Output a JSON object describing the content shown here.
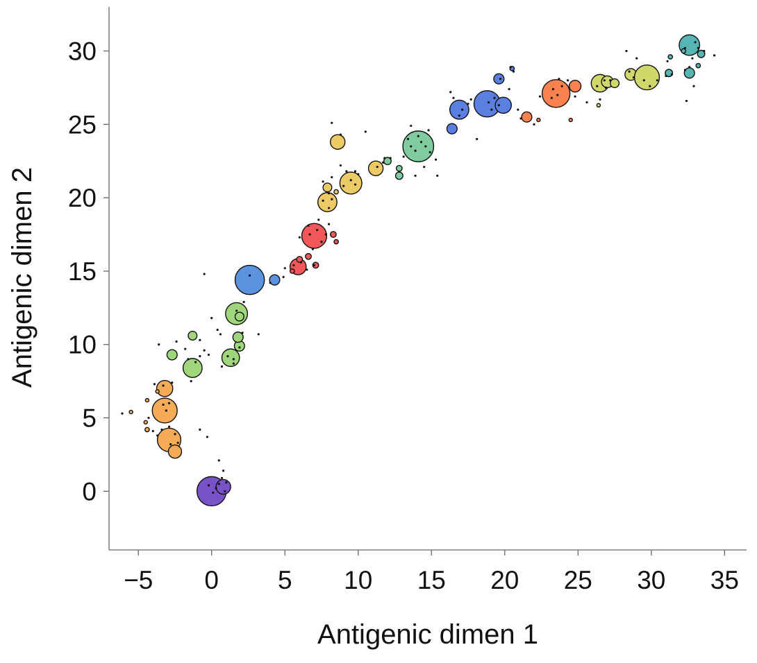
{
  "chart_data": {
    "type": "scatter",
    "title": "",
    "xlabel": "Antigenic dimen 1",
    "ylabel": "Antigenic dimen 2",
    "xlim": [
      -7,
      36.5
    ],
    "ylim": [
      -4,
      33
    ],
    "xticks": [
      -5,
      0,
      5,
      10,
      15,
      20,
      25,
      30,
      35
    ],
    "yticks": [
      0,
      5,
      10,
      15,
      20,
      25,
      30
    ],
    "xtick_labels": [
      "−5",
      "0",
      "5",
      "10",
      "15",
      "20",
      "25",
      "30",
      "35"
    ],
    "ytick_labels": [
      "0",
      "5",
      "10",
      "15",
      "20",
      "25",
      "30"
    ],
    "grid": false,
    "legend": "none",
    "clusters": [
      {
        "x": 0.0,
        "y": 0.0,
        "r": 1.0,
        "color": "#7a52c8"
      },
      {
        "x": 0.8,
        "y": 0.3,
        "r": 0.5,
        "color": "#7a52c8"
      },
      {
        "x": -2.9,
        "y": 3.5,
        "r": 0.8,
        "color": "#f6ab57"
      },
      {
        "x": -2.5,
        "y": 2.7,
        "r": 0.45,
        "color": "#f6ab57"
      },
      {
        "x": -3.2,
        "y": 5.5,
        "r": 0.85,
        "color": "#f6ab57"
      },
      {
        "x": -3.2,
        "y": 7.0,
        "r": 0.55,
        "color": "#f6ab57"
      },
      {
        "x": -1.3,
        "y": 8.4,
        "r": 0.65,
        "color": "#9fd57b"
      },
      {
        "x": -2.7,
        "y": 9.3,
        "r": 0.35,
        "color": "#9fd57b"
      },
      {
        "x": -1.3,
        "y": 10.6,
        "r": 0.3,
        "color": "#9fd57b"
      },
      {
        "x": 1.3,
        "y": 9.1,
        "r": 0.6,
        "color": "#9fd57b"
      },
      {
        "x": 1.9,
        "y": 9.9,
        "r": 0.35,
        "color": "#9fd57b"
      },
      {
        "x": 1.8,
        "y": 10.5,
        "r": 0.35,
        "color": "#9fd57b"
      },
      {
        "x": 1.7,
        "y": 12.1,
        "r": 0.75,
        "color": "#9fd57b"
      },
      {
        "x": 1.9,
        "y": 11.9,
        "r": 0.3,
        "color": "#9fd57b"
      },
      {
        "x": 2.6,
        "y": 14.4,
        "r": 1.0,
        "color": "#5b93e1"
      },
      {
        "x": 4.3,
        "y": 14.4,
        "r": 0.35,
        "color": "#5b93e1"
      },
      {
        "x": 5.9,
        "y": 15.3,
        "r": 0.55,
        "color": "#f25759"
      },
      {
        "x": 7.0,
        "y": 17.4,
        "r": 0.85,
        "color": "#f25759"
      },
      {
        "x": 8.3,
        "y": 17.5,
        "r": 0.2,
        "color": "#f25759"
      },
      {
        "x": 7.9,
        "y": 19.7,
        "r": 0.65,
        "color": "#ecca66"
      },
      {
        "x": 7.9,
        "y": 20.7,
        "r": 0.3,
        "color": "#ecca66"
      },
      {
        "x": 9.5,
        "y": 21.0,
        "r": 0.75,
        "color": "#ecca66"
      },
      {
        "x": 8.6,
        "y": 23.8,
        "r": 0.5,
        "color": "#ecca66"
      },
      {
        "x": 11.2,
        "y": 22.0,
        "r": 0.5,
        "color": "#ecca66"
      },
      {
        "x": 12.0,
        "y": 22.5,
        "r": 0.25,
        "color": "#80cc9e"
      },
      {
        "x": 14.1,
        "y": 23.5,
        "r": 1.05,
        "color": "#80cc9e"
      },
      {
        "x": 12.8,
        "y": 21.5,
        "r": 0.25,
        "color": "#80cc9e"
      },
      {
        "x": 12.8,
        "y": 22.0,
        "r": 0.2,
        "color": "#80cc9e"
      },
      {
        "x": 16.9,
        "y": 26.0,
        "r": 0.65,
        "color": "#5a7fe0"
      },
      {
        "x": 16.4,
        "y": 24.7,
        "r": 0.35,
        "color": "#5a7fe0"
      },
      {
        "x": 18.8,
        "y": 26.4,
        "r": 0.9,
        "color": "#5a7fe0"
      },
      {
        "x": 19.9,
        "y": 26.3,
        "r": 0.55,
        "color": "#5a7fe0"
      },
      {
        "x": 19.6,
        "y": 28.1,
        "r": 0.35,
        "color": "#5a7fe0"
      },
      {
        "x": 20.5,
        "y": 28.8,
        "r": 0.15,
        "color": "#5a7fe0"
      },
      {
        "x": 23.5,
        "y": 27.1,
        "r": 0.95,
        "color": "#f9824f"
      },
      {
        "x": 24.8,
        "y": 27.6,
        "r": 0.4,
        "color": "#f9824f"
      },
      {
        "x": 21.5,
        "y": 25.5,
        "r": 0.35,
        "color": "#f9824f"
      },
      {
        "x": 26.5,
        "y": 27.8,
        "r": 0.6,
        "color": "#d1d86b"
      },
      {
        "x": 27.0,
        "y": 27.9,
        "r": 0.4,
        "color": "#d1d86b"
      },
      {
        "x": 27.5,
        "y": 27.8,
        "r": 0.3,
        "color": "#d1d86b"
      },
      {
        "x": 28.6,
        "y": 28.4,
        "r": 0.4,
        "color": "#d1d86b"
      },
      {
        "x": 29.7,
        "y": 28.2,
        "r": 0.85,
        "color": "#d1d86b"
      },
      {
        "x": 32.6,
        "y": 30.4,
        "r": 0.7,
        "color": "#55b6b4"
      },
      {
        "x": 32.6,
        "y": 28.5,
        "r": 0.35,
        "color": "#55b6b4"
      },
      {
        "x": 31.2,
        "y": 28.5,
        "r": 0.25,
        "color": "#55b6b4"
      },
      {
        "x": 33.4,
        "y": 29.8,
        "r": 0.25,
        "color": "#55b6b4"
      },
      {
        "x": 31.3,
        "y": 29.6,
        "r": 0.15,
        "color": "#55b6b4"
      },
      {
        "x": 33.2,
        "y": 29.0,
        "r": 0.15,
        "color": "#55b6b4"
      },
      {
        "x": 32.2,
        "y": 30.0,
        "r": 0.15,
        "color": "#55b6b4"
      },
      {
        "x": -4.4,
        "y": 4.2,
        "r": 0.15,
        "color": "#f6ab57"
      },
      {
        "x": -5.5,
        "y": 5.4,
        "r": 0.12,
        "color": "#f6ab57"
      },
      {
        "x": -4.4,
        "y": 6.2,
        "r": 0.12,
        "color": "#f6ab57"
      },
      {
        "x": -3.7,
        "y": 6.8,
        "r": 0.12,
        "color": "#f6ab57"
      },
      {
        "x": -4.5,
        "y": 4.7,
        "r": 0.12,
        "color": "#f6ab57"
      },
      {
        "x": 6.0,
        "y": 15.8,
        "r": 0.2,
        "color": "#f25759"
      },
      {
        "x": 6.6,
        "y": 16.0,
        "r": 0.2,
        "color": "#f25759"
      },
      {
        "x": 7.1,
        "y": 15.4,
        "r": 0.2,
        "color": "#f25759"
      },
      {
        "x": 5.5,
        "y": 15.0,
        "r": 0.15,
        "color": "#f25759"
      },
      {
        "x": 8.5,
        "y": 17.0,
        "r": 0.15,
        "color": "#f25759"
      },
      {
        "x": 8.5,
        "y": 20.4,
        "r": 0.15,
        "color": "#ecca66"
      },
      {
        "x": 24.5,
        "y": 25.3,
        "r": 0.12,
        "color": "#f9824f"
      },
      {
        "x": 22.3,
        "y": 25.3,
        "r": 0.12,
        "color": "#f9824f"
      },
      {
        "x": 26.4,
        "y": 26.3,
        "r": 0.12,
        "color": "#d1d86b"
      }
    ],
    "points": [
      [
        0.3,
        0.2
      ],
      [
        0.5,
        0.5
      ],
      [
        0.7,
        0.9
      ],
      [
        0.1,
        -0.1
      ],
      [
        1.0,
        0.6
      ],
      [
        0.9,
        0.0
      ],
      [
        -0.2,
        0.4
      ],
      [
        0.5,
        2.1
      ],
      [
        0.8,
        1.4
      ],
      [
        -0.8,
        4.2
      ],
      [
        -0.3,
        3.7
      ],
      [
        -2.8,
        3.2
      ],
      [
        -2.5,
        3.9
      ],
      [
        -2.3,
        3.3
      ],
      [
        -3.3,
        5.9
      ],
      [
        -3.1,
        5.5
      ],
      [
        -2.9,
        6.0
      ],
      [
        -3.4,
        4.2
      ],
      [
        -2.9,
        4.4
      ],
      [
        -2.7,
        7.4
      ],
      [
        -3.3,
        7.2
      ],
      [
        -1.1,
        8.8
      ],
      [
        -1.6,
        9.0
      ],
      [
        -0.8,
        9.2
      ],
      [
        -1.8,
        9.7
      ],
      [
        -2.4,
        10.2
      ],
      [
        -3.6,
        10.0
      ],
      [
        -0.8,
        10.3
      ],
      [
        -0.2,
        9.3
      ],
      [
        -0.5,
        9.6
      ],
      [
        0.0,
        11.8
      ],
      [
        0.4,
        11.0
      ],
      [
        0.6,
        10.7
      ],
      [
        1.1,
        9.2
      ],
      [
        1.5,
        9.0
      ],
      [
        1.9,
        9.8
      ],
      [
        2.1,
        10.8
      ],
      [
        1.7,
        12.3
      ],
      [
        2.2,
        12.9
      ],
      [
        3.2,
        10.7
      ],
      [
        0.7,
        8.5
      ],
      [
        -0.5,
        14.8
      ],
      [
        2.6,
        14.7
      ],
      [
        4.0,
        14.2
      ],
      [
        5.6,
        15.4
      ],
      [
        6.1,
        15.6
      ],
      [
        6.5,
        15.1
      ],
      [
        5.0,
        15.2
      ],
      [
        7.0,
        15.4
      ],
      [
        6.7,
        17.5
      ],
      [
        7.2,
        17.8
      ],
      [
        7.5,
        17.0
      ],
      [
        6.9,
        16.5
      ],
      [
        7.8,
        17.5
      ],
      [
        6.6,
        18.1
      ],
      [
        8.0,
        18.2
      ],
      [
        7.3,
        18.5
      ],
      [
        6.0,
        17.3
      ],
      [
        7.6,
        19.8
      ],
      [
        8.0,
        19.3
      ],
      [
        8.2,
        19.9
      ],
      [
        8.0,
        20.3
      ],
      [
        7.6,
        21.1
      ],
      [
        8.2,
        21.4
      ],
      [
        9.0,
        20.8
      ],
      [
        9.5,
        21.2
      ],
      [
        9.8,
        20.9
      ],
      [
        10.0,
        21.6
      ],
      [
        9.2,
        21.8
      ],
      [
        9.8,
        21.8
      ],
      [
        8.8,
        22.2
      ],
      [
        8.2,
        25.1
      ],
      [
        8.8,
        24.3
      ],
      [
        10.5,
        24.5
      ],
      [
        11.3,
        22.1
      ],
      [
        11.7,
        22.4
      ],
      [
        11.8,
        22.7
      ],
      [
        13.6,
        23.5
      ],
      [
        13.9,
        23.2
      ],
      [
        14.3,
        23.8
      ],
      [
        14.6,
        23.5
      ],
      [
        13.4,
        24.0
      ],
      [
        14.1,
        24.2
      ],
      [
        14.9,
        23.1
      ],
      [
        13.1,
        22.8
      ],
      [
        13.6,
        24.9
      ],
      [
        14.5,
        22.1
      ],
      [
        13.9,
        21.5
      ],
      [
        15.4,
        21.5
      ],
      [
        14.8,
        24.6
      ],
      [
        15.3,
        22.6
      ],
      [
        16.3,
        27.2
      ],
      [
        17.1,
        26.0
      ],
      [
        16.9,
        25.6
      ],
      [
        17.5,
        26.4
      ],
      [
        18.1,
        24.0
      ],
      [
        17.7,
        26.7
      ],
      [
        18.9,
        26.5
      ],
      [
        19.1,
        26.0
      ],
      [
        19.3,
        26.8
      ],
      [
        19.6,
        26.3
      ],
      [
        19.7,
        28.1
      ],
      [
        20.4,
        28.9
      ],
      [
        20.6,
        28.6
      ],
      [
        20.3,
        27.4
      ],
      [
        20.9,
        26.0
      ],
      [
        23.3,
        27.4
      ],
      [
        23.6,
        27.0
      ],
      [
        23.9,
        27.6
      ],
      [
        23.2,
        26.8
      ],
      [
        23.7,
        28.1
      ],
      [
        22.4,
        26.9
      ],
      [
        24.8,
        26.9
      ],
      [
        24.3,
        28.0
      ],
      [
        25.6,
        26.5
      ],
      [
        26.3,
        27.6
      ],
      [
        26.8,
        28.0
      ],
      [
        26.9,
        27.5
      ],
      [
        26.5,
        26.7
      ],
      [
        27.2,
        28.0
      ],
      [
        28.3,
        30.0
      ],
      [
        28.5,
        28.6
      ],
      [
        28.8,
        28.2
      ],
      [
        29.0,
        29.5
      ],
      [
        29.5,
        28.0
      ],
      [
        29.9,
        27.6
      ],
      [
        30.4,
        28.0
      ],
      [
        31.0,
        28.3
      ],
      [
        31.4,
        28.4
      ],
      [
        32.3,
        28.7
      ],
      [
        32.6,
        28.9
      ],
      [
        32.8,
        29.5
      ],
      [
        33.0,
        30.6
      ],
      [
        33.2,
        30.2
      ],
      [
        33.6,
        30.0
      ],
      [
        34.3,
        29.7
      ],
      [
        32.4,
        26.6
      ],
      [
        32.9,
        27.6
      ],
      [
        31.1,
        29.3
      ],
      [
        32.3,
        30.2
      ],
      [
        -3.7,
        3.8
      ],
      [
        -4.0,
        4.1
      ],
      [
        -6.1,
        5.3
      ],
      [
        -4.3,
        5.0
      ],
      [
        -3.9,
        7.3
      ],
      [
        -1.4,
        7.5
      ],
      [
        1.5,
        8.7
      ],
      [
        4.9,
        14.6
      ],
      [
        12.2,
        22.7
      ],
      [
        16.5,
        26.8
      ],
      [
        21.1,
        25.4
      ],
      [
        22.0,
        25.0
      ]
    ]
  }
}
